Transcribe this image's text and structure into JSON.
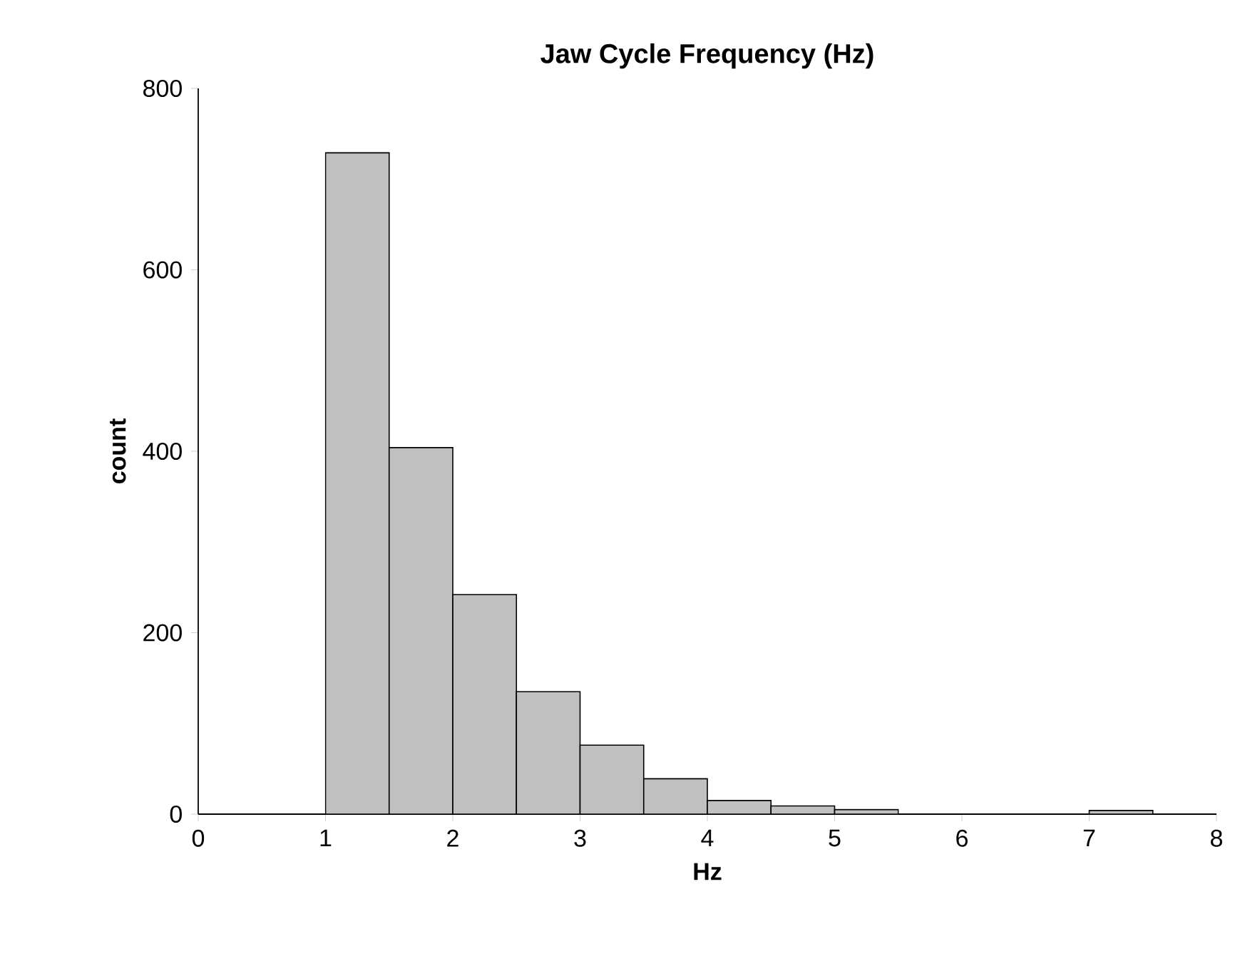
{
  "chart_data": {
    "type": "histogram",
    "title": "Jaw Cycle Frequency (Hz)",
    "xlabel": "Hz",
    "ylabel": "count",
    "bins": [
      0,
      0.5,
      1,
      1.5,
      2,
      2.5,
      3,
      3.5,
      4,
      4.5,
      5,
      5.5,
      6,
      6.5,
      7,
      7.5,
      8
    ],
    "values": [
      0,
      0,
      729,
      404,
      242,
      135,
      76,
      39,
      15,
      9,
      5,
      0,
      0,
      0,
      4,
      0
    ],
    "color": "#c0c0c0",
    "xlim": [
      0,
      8
    ],
    "ylim": [
      0,
      800
    ],
    "xticks": [
      0,
      1,
      2,
      3,
      4,
      5,
      6,
      7,
      8
    ],
    "yticks": [
      0,
      200,
      400,
      600,
      800
    ],
    "grid": false
  }
}
